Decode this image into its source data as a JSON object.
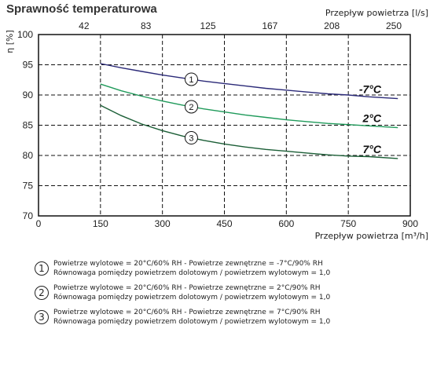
{
  "chart_data": {
    "type": "line",
    "title": "Sprawność temperaturowa",
    "ylabel": "η [%]",
    "xlabel": "Przepływ powietrza [m³/h]",
    "x2label": "Przepływ powietrza [l/s]",
    "xlim": [
      0,
      900
    ],
    "ylim": [
      70,
      100
    ],
    "xticks": [
      0,
      150,
      300,
      450,
      600,
      750,
      900
    ],
    "yticks": [
      70,
      75,
      80,
      85,
      90,
      95,
      100
    ],
    "x2ticks": [
      {
        "label": "42",
        "at": 150
      },
      {
        "label": "83",
        "at": 300
      },
      {
        "label": "125",
        "at": 450
      },
      {
        "label": "167",
        "at": 600
      },
      {
        "label": "208",
        "at": 750
      },
      {
        "label": "250",
        "at": 900
      }
    ],
    "grid": true,
    "series": [
      {
        "name": "-7°C",
        "marker": "1",
        "color": "#2b2a78",
        "x": [
          150,
          200,
          250,
          300,
          350,
          400,
          450,
          500,
          550,
          600,
          650,
          700,
          750,
          800,
          870
        ],
        "y": [
          95.2,
          94.5,
          93.9,
          93.3,
          92.8,
          92.3,
          91.9,
          91.5,
          91.1,
          90.8,
          90.5,
          90.2,
          90.0,
          89.7,
          89.4
        ]
      },
      {
        "name": "2°C",
        "marker": "2",
        "color": "#1f9a5a",
        "x": [
          150,
          200,
          250,
          300,
          350,
          400,
          450,
          500,
          550,
          600,
          650,
          700,
          750,
          800,
          870
        ],
        "y": [
          91.8,
          90.7,
          89.8,
          89.0,
          88.3,
          87.7,
          87.2,
          86.7,
          86.3,
          85.9,
          85.6,
          85.3,
          85.1,
          84.9,
          84.6
        ]
      },
      {
        "name": "7°C",
        "marker": "3",
        "color": "#1b5e36",
        "x": [
          150,
          200,
          250,
          300,
          350,
          400,
          450,
          500,
          550,
          600,
          650,
          700,
          750,
          800,
          870
        ],
        "y": [
          88.3,
          86.6,
          85.2,
          84.1,
          83.2,
          82.5,
          81.9,
          81.4,
          81.0,
          80.7,
          80.4,
          80.1,
          79.9,
          79.8,
          79.5
        ]
      }
    ]
  },
  "legend": [
    {
      "marker": "1",
      "line1": "Powietrze wylotowe = 20°C/60% RH - Powietrze zewnętrzne = -7°C/90% RH",
      "line2": "Równowaga pomiędzy powietrzem dolotowym / powietrzem wylotowym = 1,0"
    },
    {
      "marker": "2",
      "line1": "Powietrze wylotowe = 20°C/60% RH - Powietrze zewnętrzne = 2°C/90% RH",
      "line2": "Równowaga pomiędzy powietrzem dolotowym / powietrzem wylotowym = 1,0"
    },
    {
      "marker": "3",
      "line1": "Powietrze wylotowe = 20°C/60% RH - Powietrze zewnętrzne = 7°C/90% RH",
      "line2": "Równowaga pomiędzy powietrzem dolotowym / powietrzem wylotowym = 1,0"
    }
  ]
}
